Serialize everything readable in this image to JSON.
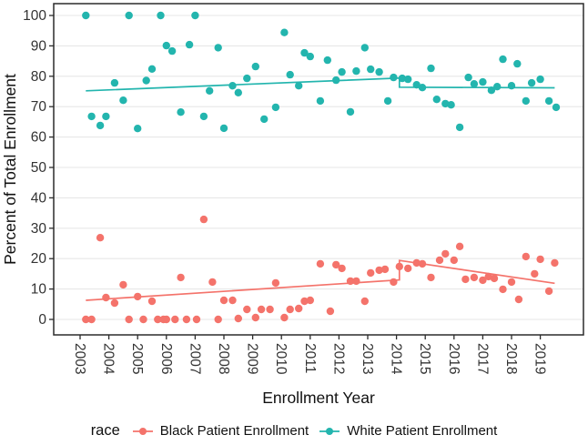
{
  "chart_data": {
    "type": "scatter",
    "title": "",
    "xlabel": "Enrollment Year",
    "ylabel": "Percent of Total Enrollment",
    "x_ticks": [
      2003,
      2004,
      2005,
      2006,
      2007,
      2008,
      2009,
      2010,
      2011,
      2012,
      2013,
      2014,
      2015,
      2016,
      2017,
      2018,
      2019
    ],
    "y_ticks": [
      0,
      10,
      20,
      30,
      40,
      50,
      60,
      70,
      80,
      90,
      100
    ],
    "xlim": [
      2002.1,
      2020.5
    ],
    "ylim": [
      0,
      100
    ],
    "grid": "horizontal-major-only",
    "break_year": 2014.1,
    "legend": {
      "title": "race",
      "position": "bottom",
      "entries": [
        {
          "label": "Black Patient Enrollment",
          "color": "#F4736B",
          "marker": "point-with-line"
        },
        {
          "label": "White Patient Enrollment",
          "color": "#23B5AE",
          "marker": "point-with-line"
        }
      ]
    },
    "series": [
      {
        "name": "Black Patient Enrollment",
        "color": "#F4736B",
        "points": [
          [
            2003.2,
            0
          ],
          [
            2003.4,
            0
          ],
          [
            2003.7,
            26.9
          ],
          [
            2003.9,
            7.2
          ],
          [
            2004.2,
            5.4
          ],
          [
            2004.5,
            11.4
          ],
          [
            2004.7,
            0
          ],
          [
            2005.0,
            7.5
          ],
          [
            2005.2,
            0
          ],
          [
            2005.5,
            6.0
          ],
          [
            2005.7,
            0
          ],
          [
            2005.9,
            0
          ],
          [
            2006.0,
            0
          ],
          [
            2006.3,
            0
          ],
          [
            2006.5,
            13.8
          ],
          [
            2006.7,
            0
          ],
          [
            2007.05,
            0
          ],
          [
            2007.3,
            32.9
          ],
          [
            2007.6,
            12.3
          ],
          [
            2007.8,
            0
          ],
          [
            2008.0,
            6.3
          ],
          [
            2008.3,
            6.3
          ],
          [
            2008.5,
            0.3
          ],
          [
            2008.8,
            3.3
          ],
          [
            2009.1,
            0.6
          ],
          [
            2009.3,
            3.3
          ],
          [
            2009.6,
            3.3
          ],
          [
            2009.8,
            12.0
          ],
          [
            2010.1,
            0.6
          ],
          [
            2010.3,
            3.3
          ],
          [
            2010.6,
            3.6
          ],
          [
            2010.8,
            6.0
          ],
          [
            2011.0,
            6.3
          ],
          [
            2011.35,
            18.3
          ],
          [
            2011.7,
            2.7
          ],
          [
            2011.9,
            18.0
          ],
          [
            2012.1,
            16.8
          ],
          [
            2012.4,
            12.6
          ],
          [
            2012.6,
            12.6
          ],
          [
            2012.9,
            6.0
          ],
          [
            2013.1,
            15.3
          ],
          [
            2013.4,
            16.2
          ],
          [
            2013.6,
            16.5
          ],
          [
            2013.9,
            12.3
          ],
          [
            2014.1,
            17.4
          ],
          [
            2014.4,
            16.8
          ],
          [
            2014.7,
            18.6
          ],
          [
            2014.9,
            18.3
          ],
          [
            2015.2,
            13.8
          ],
          [
            2015.5,
            19.5
          ],
          [
            2015.7,
            21.6
          ],
          [
            2016.0,
            19.5
          ],
          [
            2016.2,
            24.0
          ],
          [
            2016.4,
            13.2
          ],
          [
            2016.7,
            13.8
          ],
          [
            2017.0,
            12.9
          ],
          [
            2017.2,
            14.1
          ],
          [
            2017.4,
            13.5
          ],
          [
            2017.7,
            9.9
          ],
          [
            2018.0,
            12.3
          ],
          [
            2018.25,
            6.6
          ],
          [
            2018.5,
            20.7
          ],
          [
            2018.8,
            15.0
          ],
          [
            2019.0,
            19.8
          ],
          [
            2019.3,
            9.3
          ],
          [
            2019.5,
            18.6
          ]
        ],
        "trend": [
          [
            2003.2,
            6.3
          ],
          [
            2014.1,
            13.0
          ],
          [
            2014.1,
            19.4
          ],
          [
            2019.5,
            11.9
          ]
        ]
      },
      {
        "name": "White Patient Enrollment",
        "color": "#23B5AE",
        "points": [
          [
            2003.2,
            100
          ],
          [
            2003.4,
            66.8
          ],
          [
            2003.7,
            63.8
          ],
          [
            2003.9,
            66.8
          ],
          [
            2004.2,
            77.8
          ],
          [
            2004.5,
            72.1
          ],
          [
            2004.7,
            100
          ],
          [
            2005.0,
            62.8
          ],
          [
            2005.3,
            78.6
          ],
          [
            2005.5,
            82.4
          ],
          [
            2005.8,
            100
          ],
          [
            2006.0,
            90.1
          ],
          [
            2006.2,
            88.3
          ],
          [
            2006.5,
            68.2
          ],
          [
            2006.8,
            90.4
          ],
          [
            2007.0,
            100
          ],
          [
            2007.3,
            66.8
          ],
          [
            2007.5,
            75.2
          ],
          [
            2007.8,
            89.4
          ],
          [
            2008.0,
            62.9
          ],
          [
            2008.3,
            76.9
          ],
          [
            2008.5,
            74.6
          ],
          [
            2008.8,
            79.3
          ],
          [
            2009.1,
            83.2
          ],
          [
            2009.4,
            65.9
          ],
          [
            2009.8,
            69.8
          ],
          [
            2010.1,
            94.4
          ],
          [
            2010.3,
            80.5
          ],
          [
            2010.6,
            76.9
          ],
          [
            2010.8,
            87.7
          ],
          [
            2011.0,
            86.5
          ],
          [
            2011.35,
            71.9
          ],
          [
            2011.6,
            85.3
          ],
          [
            2011.9,
            78.7
          ],
          [
            2012.1,
            81.4
          ],
          [
            2012.4,
            68.3
          ],
          [
            2012.6,
            81.7
          ],
          [
            2012.9,
            89.4
          ],
          [
            2013.1,
            82.3
          ],
          [
            2013.4,
            81.4
          ],
          [
            2013.7,
            71.9
          ],
          [
            2013.9,
            79.6
          ],
          [
            2014.2,
            79.3
          ],
          [
            2014.4,
            79.0
          ],
          [
            2014.7,
            77.2
          ],
          [
            2014.9,
            76.3
          ],
          [
            2015.2,
            82.6
          ],
          [
            2015.4,
            72.4
          ],
          [
            2015.7,
            71.0
          ],
          [
            2015.9,
            70.6
          ],
          [
            2016.2,
            63.2
          ],
          [
            2016.5,
            79.6
          ],
          [
            2016.7,
            77.5
          ],
          [
            2017.0,
            78.1
          ],
          [
            2017.3,
            75.4
          ],
          [
            2017.5,
            76.6
          ],
          [
            2017.7,
            85.6
          ],
          [
            2018.0,
            76.9
          ],
          [
            2018.2,
            84.1
          ],
          [
            2018.5,
            71.9
          ],
          [
            2018.7,
            77.8
          ],
          [
            2019.0,
            79.0
          ],
          [
            2019.3,
            71.9
          ],
          [
            2019.55,
            69.8
          ]
        ],
        "trend": [
          [
            2003.2,
            75.2
          ],
          [
            2014.1,
            79.4
          ],
          [
            2014.1,
            76.4
          ],
          [
            2019.5,
            76.2
          ]
        ]
      }
    ]
  }
}
